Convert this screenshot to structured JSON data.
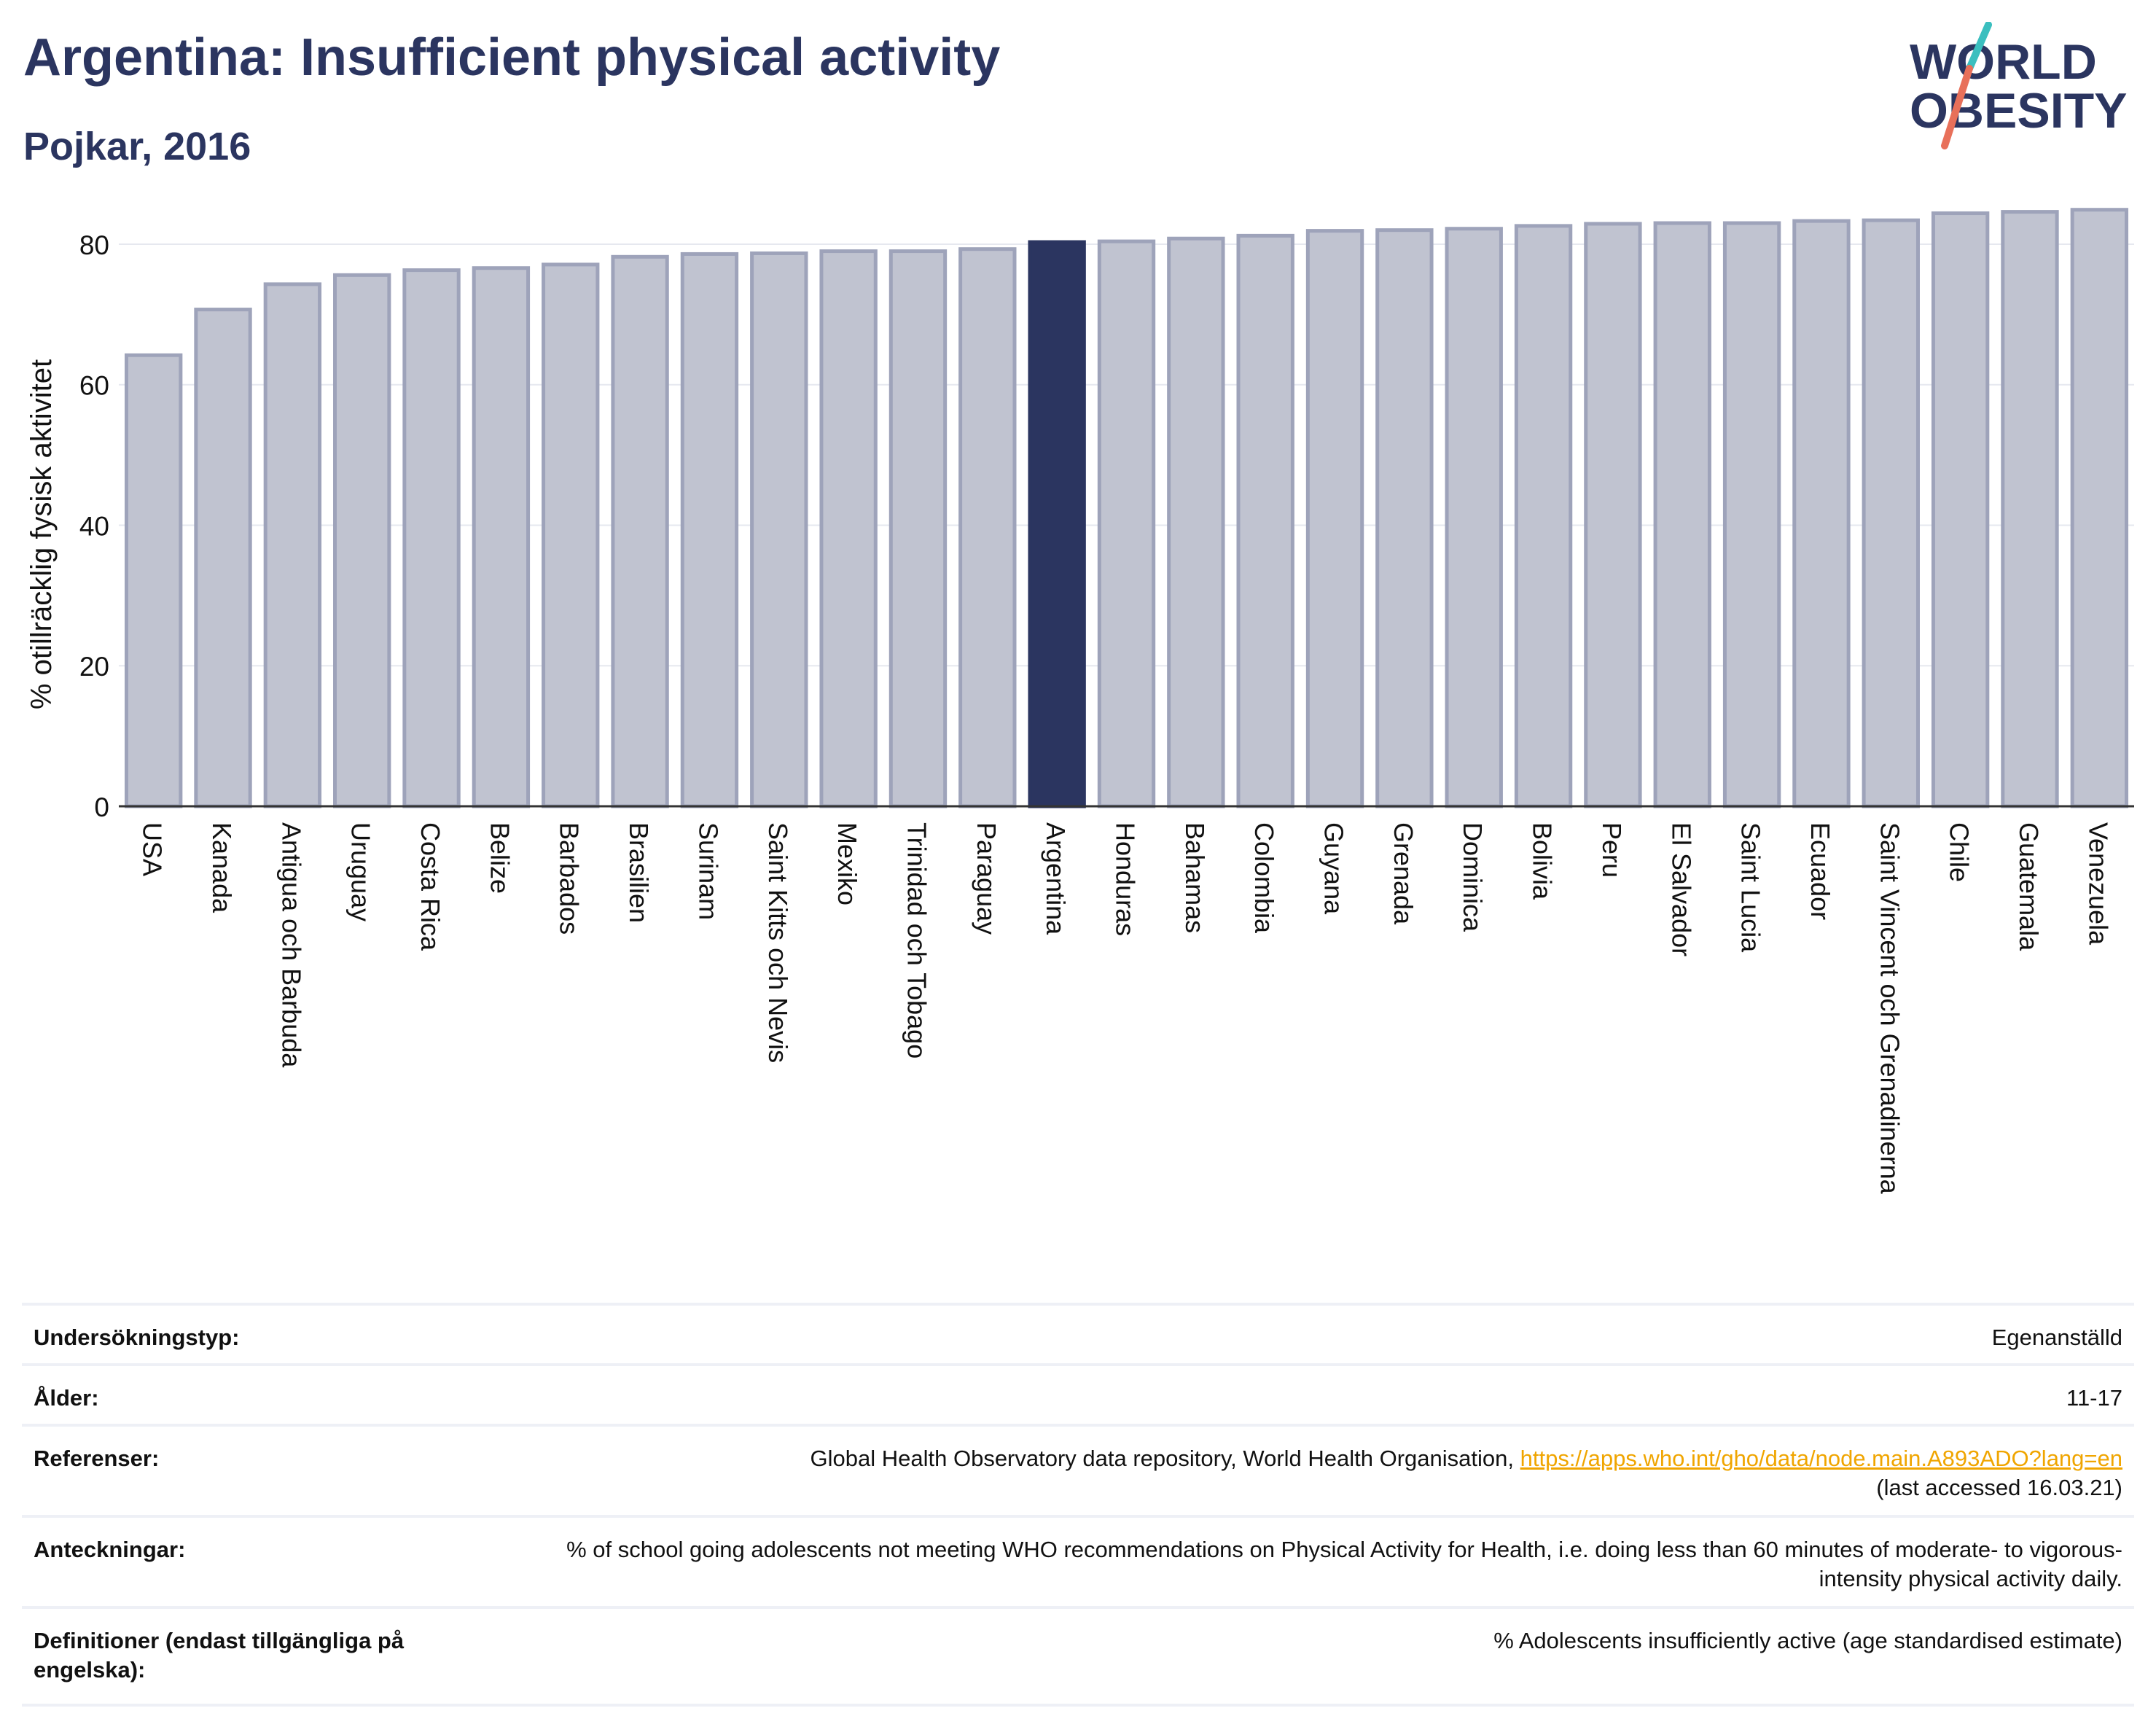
{
  "header": {
    "title": "Argentina: Insufficient physical activity",
    "subtitle": "Pojkar, 2016"
  },
  "logo": {
    "line1": "WORLD",
    "line2": "OBESITY"
  },
  "colors": {
    "bar": "#c0c3d0",
    "bar_stroke": "#9ea3ba",
    "highlight": "#2b3560",
    "title": "#2b3560",
    "link": "#f0a500",
    "logo_teal": "#3bbfbf",
    "logo_orange": "#e8705a"
  },
  "chart_data": {
    "type": "bar",
    "title": "Argentina: Insufficient physical activity",
    "subtitle": "Pojkar, 2016",
    "ylabel": "% otillräcklig fysisk aktivitet",
    "xlabel": "",
    "ylim": [
      0,
      85.7
    ],
    "yticks": [
      0,
      20,
      40,
      60,
      80
    ],
    "grid": true,
    "legend": "none",
    "highlight": "Argentina",
    "categories": [
      "USA",
      "Kanada",
      "Antigua och Barbuda",
      "Uruguay",
      "Costa Rica",
      "Belize",
      "Barbados",
      "Brasilien",
      "Surinam",
      "Saint Kitts och Nevis",
      "Mexiko",
      "Trinidad och Tobago",
      "Paraguay",
      "Argentina",
      "Honduras",
      "Bahamas",
      "Colombia",
      "Guyana",
      "Grenada",
      "Dominica",
      "Bolivia",
      "Peru",
      "El Salvador",
      "Saint Lucia",
      "Ecuador",
      "Saint Vincent och Grenadinerna",
      "Chile",
      "Guatemala",
      "Venezuela"
    ],
    "values": [
      64.2,
      70.7,
      74.3,
      75.6,
      76.3,
      76.6,
      77.1,
      78.2,
      78.6,
      78.7,
      79.0,
      79.0,
      79.3,
      80.3,
      80.4,
      80.8,
      81.2,
      81.9,
      82.0,
      82.2,
      82.6,
      82.9,
      83.0,
      83.0,
      83.3,
      83.4,
      84.4,
      84.6,
      84.9
    ]
  },
  "info": {
    "survey_type_label": "Undersökningstyp:",
    "survey_type_value": "Egenanställd",
    "age_label": "Ålder:",
    "age_value": "11-17",
    "references_label": "Referenser:",
    "references_text": "Global Health Observatory data repository, World Health Organisation, ",
    "references_link": "https://apps.who.int/gho/data/node.main.A893ADO?lang=en",
    "references_accessed": "(last accessed 16.03.21)",
    "notes_label": "Anteckningar:",
    "notes_value": "% of school going adolescents not meeting WHO recommendations on Physical Activity for Health, i.e. doing less than 60 minutes of moderate- to vigorous-intensity physical activity daily.",
    "definitions_label": "Definitioner (endast tillgängliga på engelska):",
    "definitions_value": "% Adolescents insufficiently active (age standardised estimate)"
  }
}
